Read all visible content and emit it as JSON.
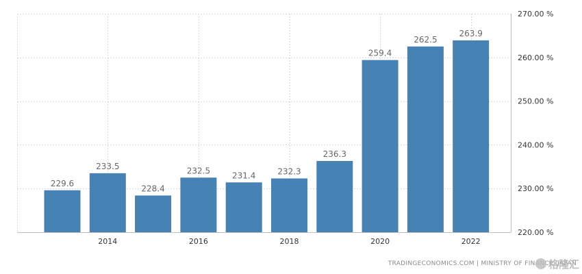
{
  "chart_data": {
    "type": "bar",
    "title": "",
    "xlabel": "",
    "ylabel": "",
    "categories": [
      "2013",
      "2014",
      "2015",
      "2016",
      "2017",
      "2018",
      "2019",
      "2020",
      "2021",
      "2022"
    ],
    "values": [
      229.6,
      233.5,
      228.4,
      232.5,
      231.4,
      232.3,
      236.3,
      259.4,
      262.5,
      263.9
    ],
    "data_labels": [
      "229.6",
      "233.5",
      "228.4",
      "232.5",
      "231.4",
      "232.3",
      "236.3",
      "259.4",
      "262.5",
      "263.9"
    ],
    "ylim": [
      220,
      270
    ],
    "y_ticks": [
      220,
      230,
      240,
      250,
      260,
      270
    ],
    "y_tick_labels": [
      "220.00 %",
      "230.00 %",
      "240.00 %",
      "250.00 %",
      "260.00 %",
      "270.00 %"
    ],
    "x_tick_labels": [
      "2014",
      "2016",
      "2018",
      "2020",
      "2022"
    ],
    "x_tick_categories": [
      "2014",
      "2016",
      "2018",
      "2020",
      "2022"
    ],
    "y_axis_position": "right",
    "grid": true,
    "legend": "none",
    "colors": {
      "bar": "#4682b4",
      "grid": "#d9d9d9",
      "label": "#666666"
    }
  },
  "footer": {
    "source": "TRADINGECONOMICS.COM  |  MINISTRY OF FINANCE, JAPAN",
    "watermark_text": "格隆汇"
  }
}
